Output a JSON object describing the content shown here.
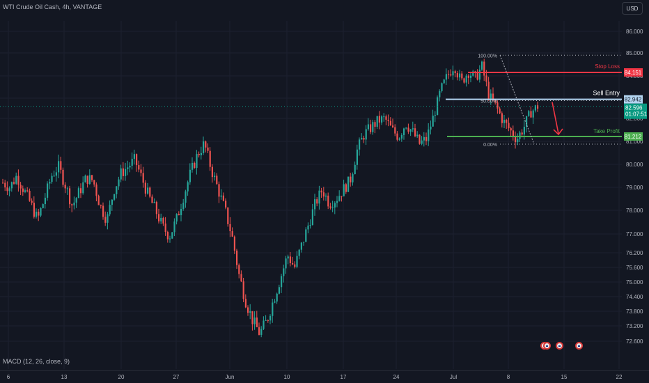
{
  "header": {
    "title": "WTI Crude Oil Cash, 4h, VANTAGE",
    "currency_button": "USD"
  },
  "indicator": {
    "label": "MACD (12, 26, close, 9)"
  },
  "colors": {
    "background": "#131722",
    "grid": "#1c2030",
    "up": "#26a69a",
    "down": "#ef5350",
    "stop_loss": "#f23645",
    "sell_entry": "#b2d4f0",
    "take_profit": "#4caf50",
    "price_tag": "#089981",
    "arrow": "#f23645"
  },
  "events": {
    "icons": [
      "flag-icon",
      "flag-icon",
      "flag-icon",
      "flag-icon"
    ]
  },
  "chart_data": {
    "type": "candlestick",
    "price_axis": {
      "ticks": [
        "86.000",
        "85.000",
        "84.000",
        "83.000",
        "82.000",
        "81.000",
        "80.000",
        "79.000",
        "78.000",
        "77.000",
        "76.200",
        "75.600",
        "75.000",
        "74.400",
        "73.800",
        "73.200",
        "72.600"
      ]
    },
    "time_axis": {
      "ticks": [
        "6",
        "13",
        "20",
        "27",
        "Jun",
        "10",
        "17",
        "24",
        "Jul",
        "8",
        "15",
        "22"
      ]
    },
    "close_series": [
      79.2,
      79.0,
      79.5,
      78.9,
      78.3,
      77.6,
      78.5,
      79.5,
      79.9,
      79.1,
      78.2,
      78.8,
      79.4,
      79.3,
      78.2,
      77.6,
      78.9,
      79.6,
      79.9,
      80.2,
      79.4,
      78.6,
      78.0,
      77.3,
      76.9,
      77.6,
      78.6,
      79.6,
      80.4,
      80.9,
      79.8,
      78.9,
      78.0,
      76.9,
      75.3,
      74.2,
      73.4,
      72.9,
      73.4,
      74.3,
      75.2,
      76.1,
      75.6,
      76.5,
      77.4,
      78.3,
      78.9,
      78.3,
      78.5,
      78.9,
      79.3,
      80.6,
      81.3,
      81.6,
      81.9,
      82.0,
      81.5,
      81.2,
      81.8,
      81.4,
      80.9,
      81.1,
      82.1,
      83.3,
      84.0,
      84.5,
      83.7,
      84.2,
      83.9,
      84.4,
      83.1,
      82.6,
      81.9,
      81.5,
      81.1,
      81.6,
      82.3,
      82.6
    ],
    "annotations": {
      "stop_loss": {
        "label": "Stop Loss",
        "price": "84.151"
      },
      "sell_entry": {
        "label": "Sell Entry",
        "price": "82.942"
      },
      "take_profit": {
        "label": "Take Profit",
        "price": "81.212"
      },
      "current_price": {
        "price": "82.596",
        "countdown": "01:07:51"
      },
      "fib_levels": [
        {
          "label": "100.00%",
          "price": 84.9
        },
        {
          "label": "50.00%",
          "price": 82.88
        },
        {
          "label": "0.00%",
          "price": 80.88
        }
      ]
    }
  }
}
